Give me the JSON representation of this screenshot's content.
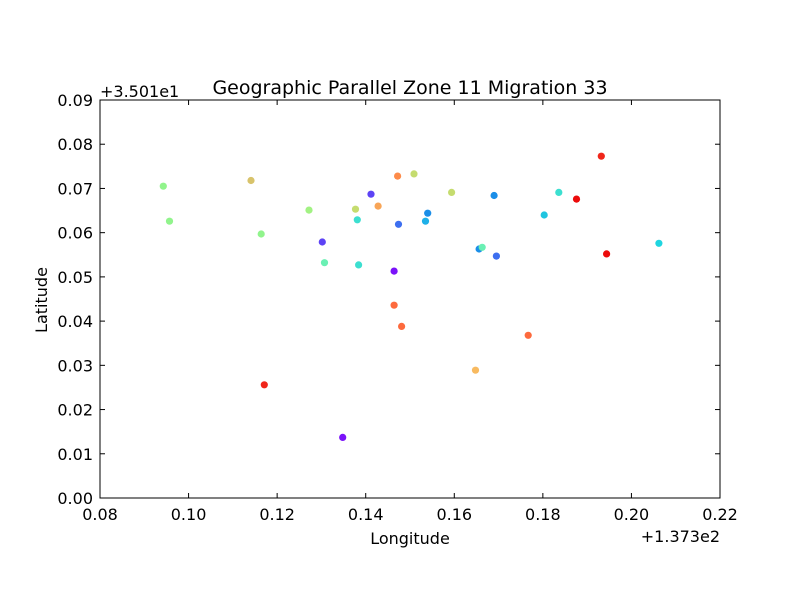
{
  "chart_data": {
    "type": "scatter",
    "title": "Geographic Parallel Zone 11 Migration 33",
    "xlabel": "Longitude",
    "ylabel": "Latitude",
    "xlim": [
      0.08,
      0.22
    ],
    "ylim": [
      0.0,
      0.09
    ],
    "x_offset_label": "+1.373e2",
    "y_offset_label": "+3.501e1",
    "x_ticks": [
      0.08,
      0.1,
      0.12,
      0.14,
      0.16,
      0.18,
      0.2,
      0.22
    ],
    "x_tick_labels": [
      "0.08",
      "0.10",
      "0.12",
      "0.14",
      "0.16",
      "0.18",
      "0.20",
      "0.22"
    ],
    "y_ticks": [
      0.0,
      0.01,
      0.02,
      0.03,
      0.04,
      0.05,
      0.06,
      0.07,
      0.08,
      0.09
    ],
    "y_tick_labels": [
      "0.00",
      "0.01",
      "0.02",
      "0.03",
      "0.04",
      "0.05",
      "0.06",
      "0.07",
      "0.08",
      "0.09"
    ],
    "grid": false,
    "points": [
      {
        "x": 0.0943,
        "y": 0.0705,
        "color": "#91f48c"
      },
      {
        "x": 0.0957,
        "y": 0.0626,
        "color": "#91f48c"
      },
      {
        "x": 0.1141,
        "y": 0.0718,
        "color": "#d8c36b"
      },
      {
        "x": 0.1164,
        "y": 0.0597,
        "color": "#91f48c"
      },
      {
        "x": 0.1171,
        "y": 0.0256,
        "color": "#f0261a"
      },
      {
        "x": 0.1272,
        "y": 0.0651,
        "color": "#a2f283"
      },
      {
        "x": 0.1302,
        "y": 0.0579,
        "color": "#5d43f5"
      },
      {
        "x": 0.1307,
        "y": 0.0532,
        "color": "#6af0b4"
      },
      {
        "x": 0.1348,
        "y": 0.0137,
        "color": "#7a12f9"
      },
      {
        "x": 0.1377,
        "y": 0.0653,
        "color": "#c5dc6f"
      },
      {
        "x": 0.1381,
        "y": 0.0629,
        "color": "#3cdfd0"
      },
      {
        "x": 0.1384,
        "y": 0.0527,
        "color": "#3cdfd0"
      },
      {
        "x": 0.1412,
        "y": 0.0687,
        "color": "#5d43f5"
      },
      {
        "x": 0.1428,
        "y": 0.066,
        "color": "#f8a557"
      },
      {
        "x": 0.1464,
        "y": 0.0513,
        "color": "#7a12f9"
      },
      {
        "x": 0.1464,
        "y": 0.0436,
        "color": "#fd6a3d"
      },
      {
        "x": 0.1472,
        "y": 0.0728,
        "color": "#fd8b4a"
      },
      {
        "x": 0.1474,
        "y": 0.0619,
        "color": "#3d6ff0"
      },
      {
        "x": 0.1481,
        "y": 0.0388,
        "color": "#fd6a3d"
      },
      {
        "x": 0.1509,
        "y": 0.0733,
        "color": "#c5dc6f"
      },
      {
        "x": 0.1535,
        "y": 0.0626,
        "color": "#1fb0e8"
      },
      {
        "x": 0.154,
        "y": 0.0644,
        "color": "#1a8ee8"
      },
      {
        "x": 0.1594,
        "y": 0.0691,
        "color": "#c5dc6f"
      },
      {
        "x": 0.1648,
        "y": 0.0289,
        "color": "#f8ba60"
      },
      {
        "x": 0.1656,
        "y": 0.0563,
        "color": "#1a8ee8"
      },
      {
        "x": 0.1663,
        "y": 0.0567,
        "color": "#6af0b4"
      },
      {
        "x": 0.169,
        "y": 0.0684,
        "color": "#1a8ee8"
      },
      {
        "x": 0.1695,
        "y": 0.0547,
        "color": "#3d6ff0"
      },
      {
        "x": 0.1767,
        "y": 0.0368,
        "color": "#fd6a3d"
      },
      {
        "x": 0.1803,
        "y": 0.064,
        "color": "#1fc5e0"
      },
      {
        "x": 0.1836,
        "y": 0.0691,
        "color": "#3cdfd0"
      },
      {
        "x": 0.1876,
        "y": 0.0676,
        "color": "#ec0b0b"
      },
      {
        "x": 0.1932,
        "y": 0.0773,
        "color": "#f0261a"
      },
      {
        "x": 0.1944,
        "y": 0.0552,
        "color": "#ec0b0b"
      },
      {
        "x": 0.2062,
        "y": 0.0576,
        "color": "#1fd5e0"
      }
    ]
  }
}
